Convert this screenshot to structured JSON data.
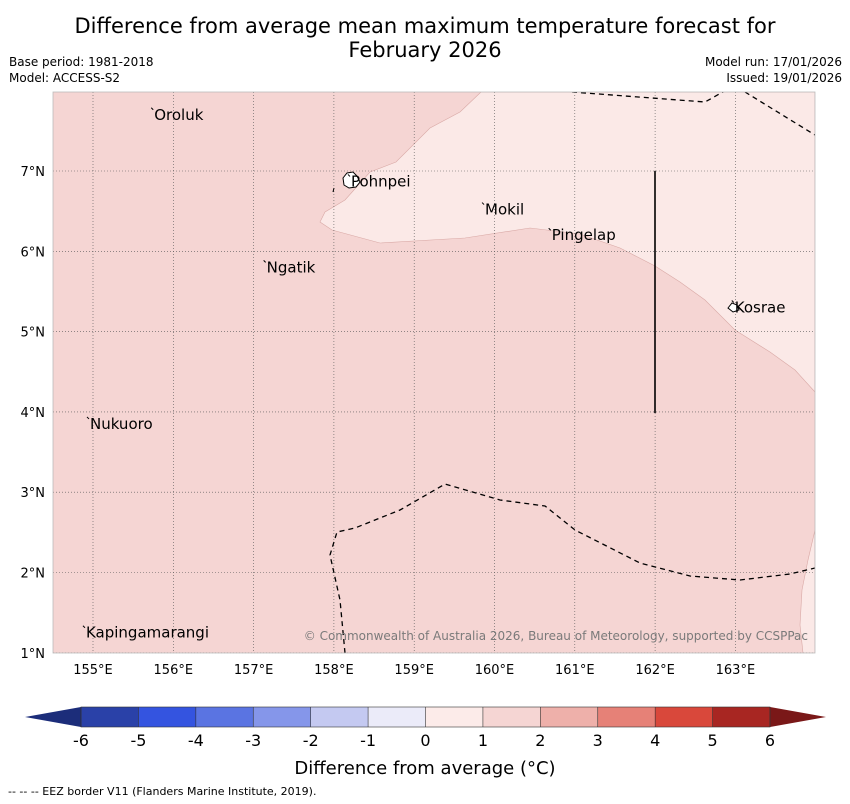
{
  "title": {
    "line1": "Difference from average mean maximum temperature forecast for",
    "line2": "February 2026"
  },
  "meta": {
    "base_period": "Base period: 1981-2018",
    "model": "Model: ACCESS-S2",
    "model_run": "Model run: 17/01/2026",
    "issued": "Issued: 19/01/2026"
  },
  "map": {
    "lon_labels": [
      "155°E",
      "156°E",
      "157°E",
      "158°E",
      "159°E",
      "160°E",
      "161°E",
      "162°E",
      "163°E"
    ],
    "lat_labels": [
      "7°N",
      "6°N",
      "5°N",
      "4°N",
      "3°N",
      "2°N",
      "1°N"
    ],
    "places": [
      {
        "name": "Oroluk",
        "lon": 155.75,
        "lat": 7.7
      },
      {
        "name": "Pohnpei",
        "lon": 158.2,
        "lat": 6.87
      },
      {
        "name": "Mokil",
        "lon": 159.87,
        "lat": 6.52
      },
      {
        "name": "Pingelap",
        "lon": 160.7,
        "lat": 6.2
      },
      {
        "name": "Ngatik",
        "lon": 157.15,
        "lat": 5.8
      },
      {
        "name": "Kosrae",
        "lon": 162.98,
        "lat": 5.3
      },
      {
        "name": "Nukuoro",
        "lon": 154.95,
        "lat": 3.85
      },
      {
        "name": "Kapingamarangi",
        "lon": 154.9,
        "lat": 1.25
      }
    ],
    "copyright": "© Commonwealth of Australia 2026, Bureau of Meteorology, supported by CCSPPac",
    "colors": {
      "band_0_1": "#fbe9e7",
      "band_1_2": "#f5d5d3",
      "grid": "#555555"
    }
  },
  "colorbar": {
    "ticks": [
      "-6",
      "-5",
      "-4",
      "-3",
      "-2",
      "-1",
      "0",
      "1",
      "2",
      "3",
      "4",
      "5",
      "6"
    ],
    "colors": [
      "#2a41a8",
      "#3454e0",
      "#5a74e2",
      "#8596ea",
      "#c4c9f1",
      "#ebebf9",
      "#fcebe9",
      "#f5d5d3",
      "#eeb0aa",
      "#e68177",
      "#d9483b",
      "#a82622"
    ],
    "extend_low": "#1c2d7a",
    "extend_high": "#7a1818",
    "label": "Difference from average (°C)"
  },
  "footer": "--  --  -- EEZ border V11 (Flanders Marine Institute, 2019)."
}
